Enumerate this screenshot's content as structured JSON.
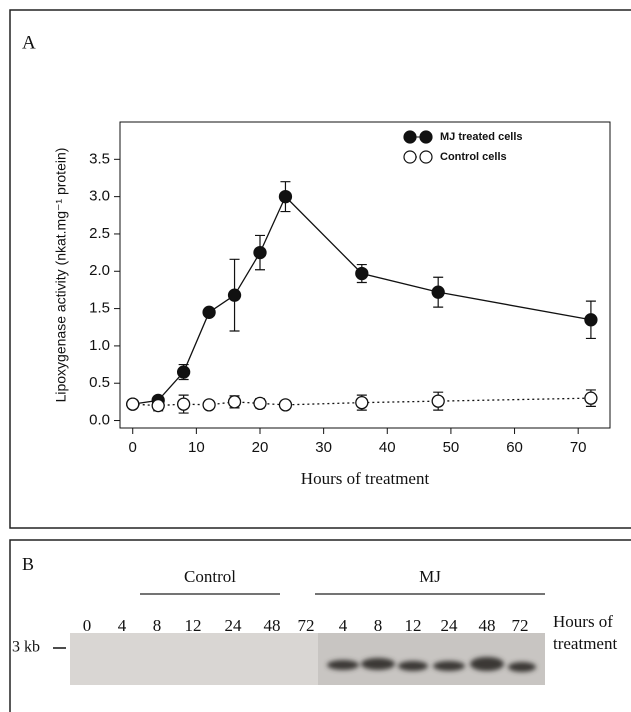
{
  "chart_data": {
    "type": "line",
    "panel_label": "A",
    "x_label": "Hours of treatment",
    "y_label": "Lipoxygenase activity (nkat.mg⁻¹ protein)",
    "xlim": [
      -2,
      75
    ],
    "ylim": [
      -0.1,
      4.0
    ],
    "xticks": [
      0,
      10,
      20,
      30,
      40,
      50,
      60,
      70
    ],
    "yticks": [
      {
        "value": 0,
        "label": "0.0"
      },
      0.5,
      {
        "value": 1,
        "label": "1.0"
      },
      1.5,
      {
        "value": 2,
        "label": "2.0"
      },
      2.5,
      {
        "value": 3,
        "label": "3.0"
      },
      3.5
    ],
    "legend": "upper right",
    "grid": false,
    "series": [
      {
        "name": "MJ treated cells",
        "color": "#111111",
        "marker": "filled",
        "line_style": "solid",
        "x": [
          0,
          4,
          8,
          12,
          16,
          20,
          24,
          36,
          48,
          72
        ],
        "values": [
          0.22,
          0.27,
          0.65,
          1.45,
          1.68,
          2.25,
          3.0,
          1.97,
          1.72,
          1.35
        ],
        "errors": [
          0.03,
          0.03,
          0.1,
          0.05,
          0.48,
          0.23,
          0.2,
          0.12,
          0.2,
          0.25
        ]
      },
      {
        "name": "Control cells",
        "color": "#111111",
        "marker": "open",
        "line_style": "dotted",
        "x": [
          0,
          4,
          8,
          12,
          16,
          20,
          24,
          36,
          48,
          72
        ],
        "values": [
          0.22,
          0.2,
          0.22,
          0.21,
          0.25,
          0.23,
          0.21,
          0.24,
          0.26,
          0.3
        ],
        "errors": [
          0.03,
          0.07,
          0.12,
          0.05,
          0.08,
          0.06,
          0.03,
          0.1,
          0.12,
          0.11
        ]
      }
    ]
  },
  "blot": {
    "panel_label": "B",
    "size_marker": "3 kb",
    "lane_axis_label": [
      "Hours of",
      "treatment"
    ],
    "groups": [
      {
        "name": "Control",
        "lanes": [
          "0",
          "4",
          "8",
          "12",
          "24",
          "48",
          "72"
        ]
      },
      {
        "name": "MJ",
        "lanes": [
          "4",
          "8",
          "12",
          "24",
          "48",
          "72"
        ]
      }
    ]
  }
}
